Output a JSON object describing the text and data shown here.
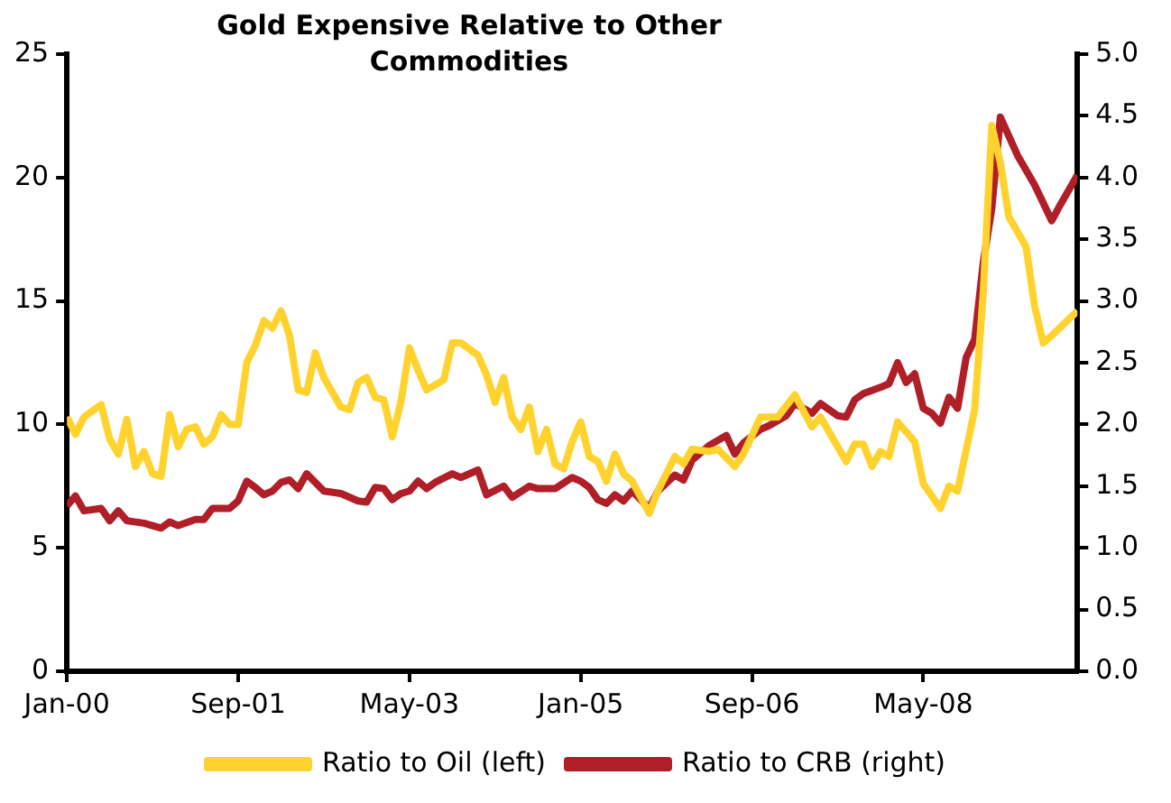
{
  "chart_data": {
    "type": "line",
    "title": "Gold Expensive Relative to Other Commodities",
    "legend": "bottom",
    "grid": false,
    "xlim": [
      "2000-01",
      "2009-11"
    ],
    "xticks": [
      {
        "value": "2000-01",
        "label": "Jan-00"
      },
      {
        "value": "2001-09",
        "label": "Sep-01"
      },
      {
        "value": "2003-05",
        "label": "May-03"
      },
      {
        "value": "2005-01",
        "label": "Jan-05"
      },
      {
        "value": "2006-09",
        "label": "Sep-06"
      },
      {
        "value": "2008-05",
        "label": "May-08"
      }
    ],
    "ylim": [
      0,
      25
    ],
    "yticks": [
      0,
      5,
      10,
      15,
      20,
      25
    ],
    "y2lim": [
      0,
      5
    ],
    "y2ticks": [
      {
        "value": 0,
        "label": "0.0"
      },
      {
        "value": 0.5,
        "label": "0.5"
      },
      {
        "value": 1,
        "label": "1.0"
      },
      {
        "value": 1.5,
        "label": "1.5"
      },
      {
        "value": 2,
        "label": "2.0"
      },
      {
        "value": 2.5,
        "label": "2.5"
      },
      {
        "value": 3,
        "label": "3.0"
      },
      {
        "value": 3.5,
        "label": "3.5"
      },
      {
        "value": 4,
        "label": "4.0"
      },
      {
        "value": 4.5,
        "label": "4.5"
      },
      {
        "value": 5,
        "label": "5.0"
      }
    ],
    "series": [
      {
        "name": "Ratio to Oil (left)",
        "color": "#ffd22e",
        "x": [
          "2000-01",
          "2000-02",
          "2000-03",
          "2000-05",
          "2000-06",
          "2000-07",
          "2000-08",
          "2000-09",
          "2000-10",
          "2000-11",
          "2000-12",
          "2001-01",
          "2001-02",
          "2001-03",
          "2001-04",
          "2001-05",
          "2001-06",
          "2001-07",
          "2001-08",
          "2001-09",
          "2001-10",
          "2001-11",
          "2001-12",
          "2002-01",
          "2002-02",
          "2002-03",
          "2002-04",
          "2002-05",
          "2002-06",
          "2002-07",
          "2002-08",
          "2002-09",
          "2002-10",
          "2002-11",
          "2002-12",
          "2003-01",
          "2003-02",
          "2003-03",
          "2003-04",
          "2003-05",
          "2003-06",
          "2003-07",
          "2003-09",
          "2003-10",
          "2003-11",
          "2004-01",
          "2004-02",
          "2004-03",
          "2004-04",
          "2004-05",
          "2004-06",
          "2004-07",
          "2004-08",
          "2004-09",
          "2004-10",
          "2004-11",
          "2004-12",
          "2005-01",
          "2005-02",
          "2005-03",
          "2005-04",
          "2005-05",
          "2005-06",
          "2005-07",
          "2005-09",
          "2005-10",
          "2005-12",
          "2006-01",
          "2006-02",
          "2006-04",
          "2006-05",
          "2006-07",
          "2006-08",
          "2006-10",
          "2006-12",
          "2007-02",
          "2007-04",
          "2007-05",
          "2007-08",
          "2007-09",
          "2007-10",
          "2007-11",
          "2007-12",
          "2008-01",
          "2008-02",
          "2008-04",
          "2008-05",
          "2008-07",
          "2008-08",
          "2008-09",
          "2008-11",
          "2008-12",
          "2009-01",
          "2009-02",
          "2009-03",
          "2009-05",
          "2009-06",
          "2009-07",
          "2009-08",
          "2009-11"
        ],
        "values": [
          10.3,
          9.6,
          10.3,
          10.8,
          9.4,
          8.8,
          10.2,
          8.3,
          8.9,
          8.0,
          7.9,
          10.4,
          9.1,
          9.8,
          9.9,
          9.2,
          9.5,
          10.4,
          10.0,
          10.0,
          12.5,
          13.2,
          14.2,
          13.9,
          14.6,
          13.6,
          11.4,
          11.3,
          12.9,
          11.9,
          11.3,
          10.7,
          10.6,
          11.7,
          11.9,
          11.1,
          11.0,
          9.5,
          10.9,
          13.1,
          12.2,
          11.4,
          11.8,
          13.3,
          13.3,
          12.8,
          12.0,
          10.9,
          11.9,
          10.3,
          9.8,
          10.7,
          8.9,
          9.8,
          8.4,
          8.2,
          9.3,
          10.1,
          8.7,
          8.5,
          7.7,
          8.8,
          8.0,
          7.7,
          6.4,
          7.3,
          8.7,
          8.4,
          9.0,
          8.9,
          9.0,
          8.3,
          8.8,
          10.3,
          10.3,
          11.2,
          9.9,
          10.3,
          8.5,
          9.2,
          9.2,
          8.3,
          8.9,
          8.7,
          10.1,
          9.3,
          7.6,
          6.6,
          7.5,
          7.3,
          10.6,
          15.3,
          22.1,
          20.6,
          18.4,
          17.2,
          14.8,
          13.3,
          13.6,
          14.6
        ]
      },
      {
        "name": "Ratio to CRB (right)",
        "color": "#b01e28",
        "axis": "y2",
        "x": [
          "2000-01",
          "2000-02",
          "2000-03",
          "2000-05",
          "2000-06",
          "2000-07",
          "2000-08",
          "2000-10",
          "2000-12",
          "2001-01",
          "2001-02",
          "2001-04",
          "2001-05",
          "2001-06",
          "2001-08",
          "2001-09",
          "2001-10",
          "2001-11",
          "2001-12",
          "2002-01",
          "2002-02",
          "2002-03",
          "2002-04",
          "2002-05",
          "2002-07",
          "2002-09",
          "2002-11",
          "2002-12",
          "2003-01",
          "2003-02",
          "2003-03",
          "2003-04",
          "2003-05",
          "2003-06",
          "2003-07",
          "2003-08",
          "2003-10",
          "2003-11",
          "2004-01",
          "2004-02",
          "2004-04",
          "2004-05",
          "2004-07",
          "2004-08",
          "2004-10",
          "2004-12",
          "2005-01",
          "2005-02",
          "2005-03",
          "2005-04",
          "2005-05",
          "2005-06",
          "2005-07",
          "2005-09",
          "2005-10",
          "2005-12",
          "2006-01",
          "2006-02",
          "2006-04",
          "2006-06",
          "2006-07",
          "2006-08",
          "2006-10",
          "2006-11",
          "2007-01",
          "2007-02",
          "2007-04",
          "2007-05",
          "2007-07",
          "2007-08",
          "2007-09",
          "2007-10",
          "2007-12",
          "2008-01",
          "2008-02",
          "2008-03",
          "2008-04",
          "2008-05",
          "2008-06",
          "2008-07",
          "2008-08",
          "2008-09",
          "2008-10",
          "2008-11",
          "2008-12",
          "2009-01",
          "2009-02",
          "2009-04",
          "2009-06",
          "2009-08",
          "2009-09",
          "2009-11"
        ],
        "values": [
          1.34,
          1.42,
          1.3,
          1.32,
          1.22,
          1.3,
          1.22,
          1.2,
          1.16,
          1.21,
          1.18,
          1.23,
          1.23,
          1.32,
          1.32,
          1.38,
          1.54,
          1.49,
          1.43,
          1.46,
          1.53,
          1.55,
          1.48,
          1.6,
          1.46,
          1.44,
          1.38,
          1.37,
          1.49,
          1.48,
          1.39,
          1.44,
          1.46,
          1.54,
          1.48,
          1.53,
          1.6,
          1.57,
          1.63,
          1.43,
          1.5,
          1.41,
          1.5,
          1.48,
          1.48,
          1.57,
          1.54,
          1.49,
          1.39,
          1.36,
          1.43,
          1.38,
          1.46,
          1.32,
          1.46,
          1.59,
          1.55,
          1.71,
          1.83,
          1.91,
          1.76,
          1.85,
          1.96,
          1.99,
          2.07,
          2.17,
          2.09,
          2.17,
          2.07,
          2.06,
          2.2,
          2.25,
          2.3,
          2.33,
          2.5,
          2.34,
          2.41,
          2.13,
          2.09,
          2.01,
          2.22,
          2.13,
          2.54,
          2.69,
          3.31,
          3.75,
          4.49,
          4.18,
          3.94,
          3.65,
          3.78,
          4.02
        ]
      }
    ]
  }
}
